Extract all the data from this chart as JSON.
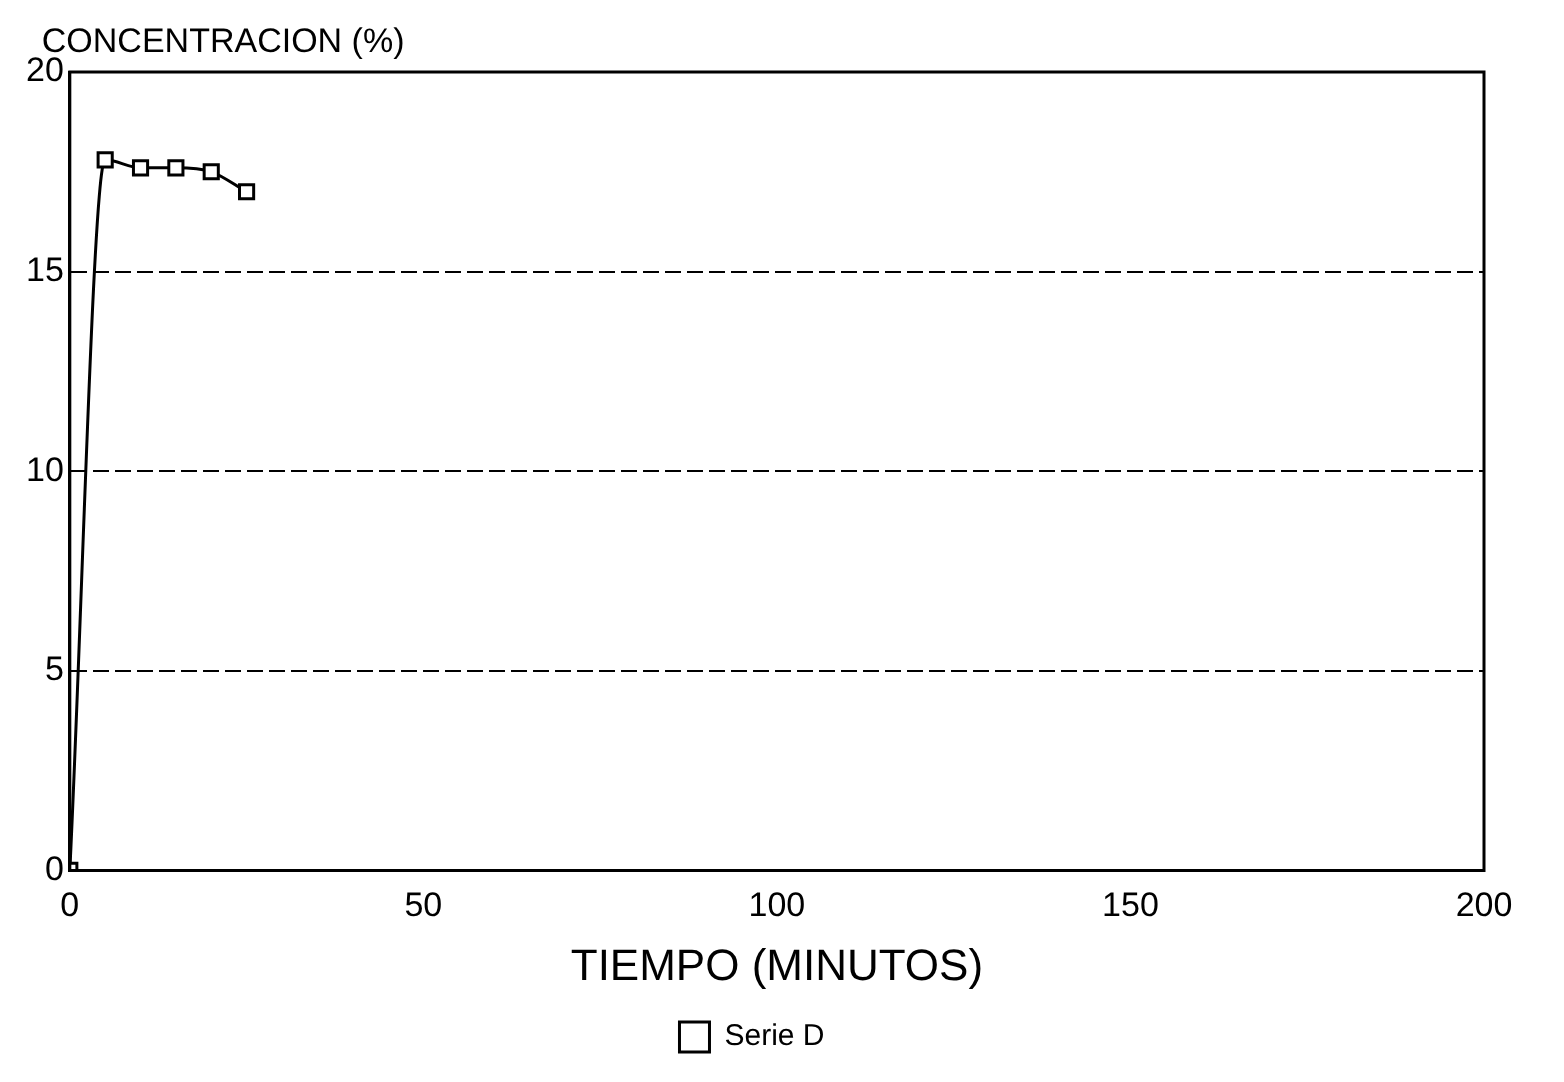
{
  "chart_data": {
    "type": "line",
    "xlabel": "TIEMPO (MINUTOS)",
    "ylabel": "CONCENTRACION (%)",
    "x": [
      0,
      5,
      10,
      15,
      20,
      25
    ],
    "series": [
      {
        "name": "Serie D",
        "color": "#000000",
        "values": [
          0,
          17.8,
          17.6,
          17.6,
          17.5,
          17.0
        ]
      }
    ],
    "xlim": [
      0,
      200
    ],
    "xticks": [
      0,
      50,
      100,
      150,
      200
    ],
    "ylim": [
      0,
      20
    ],
    "yticks": [
      0,
      5,
      10,
      15,
      20
    ],
    "grid": "y",
    "legend": "bottom",
    "marker": "square",
    "line_style": "solid"
  }
}
